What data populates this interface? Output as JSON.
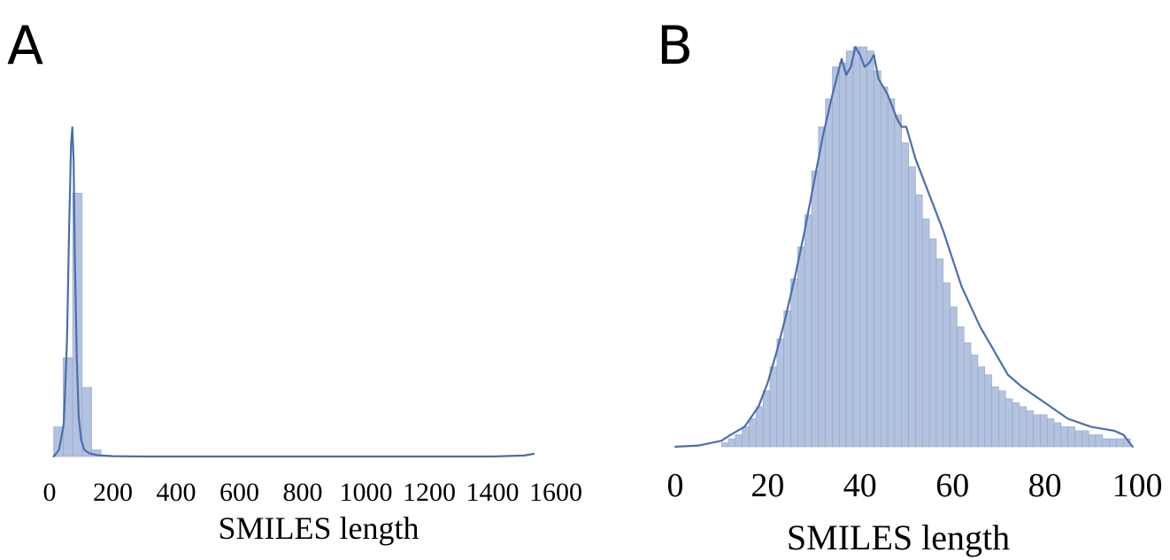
{
  "chart_data": [
    {
      "type": "histogram",
      "panel_label": "A",
      "xlabel": "SMILES length",
      "ylabel": "",
      "xlim": [
        0,
        1600
      ],
      "xticks": [
        "0",
        "200",
        "400",
        "600",
        "800",
        "1000",
        "1200",
        "1400",
        "1600"
      ],
      "y_axis_shown": false,
      "grid": false,
      "bar_color": "#b3c2de",
      "bar_edge_color": "#8fa3cc",
      "line_color": "#4a6fad",
      "bins": [
        {
          "start": 13,
          "end": 43,
          "density": 0.09
        },
        {
          "start": 43,
          "end": 73,
          "density": 0.3
        },
        {
          "start": 73,
          "end": 103,
          "density": 0.8
        },
        {
          "start": 103,
          "end": 133,
          "density": 0.21
        },
        {
          "start": 133,
          "end": 163,
          "density": 0.02
        },
        {
          "start": 163,
          "end": 193,
          "density": 0.004
        }
      ],
      "kde": {
        "x": [
          13,
          30,
          45,
          55,
          62,
          68,
          72,
          76,
          80,
          86,
          92,
          100,
          110,
          125,
          150,
          200,
          300,
          500,
          800,
          1100,
          1400,
          1500,
          1530
        ],
        "y": [
          0.0,
          0.02,
          0.1,
          0.35,
          0.7,
          0.95,
          1.0,
          0.9,
          0.6,
          0.3,
          0.12,
          0.05,
          0.02,
          0.01,
          0.004,
          0.001,
          0.0,
          0.0,
          0.0,
          0.0,
          0.0,
          0.003,
          0.008
        ]
      }
    },
    {
      "type": "histogram",
      "panel_label": "B",
      "xlabel": "SMILES length",
      "ylabel": "",
      "xlim": [
        0,
        100
      ],
      "xticks": [
        "0",
        "20",
        "40",
        "60",
        "80",
        "100"
      ],
      "y_axis_shown": false,
      "grid": false,
      "bar_color": "#b3c2de",
      "bar_edge_color": "#8fa3cc",
      "line_color": "#4a6fad",
      "bin_start": 10,
      "bin_width": 1.5,
      "bin_densities": [
        0.01,
        0.02,
        0.03,
        0.05,
        0.07,
        0.1,
        0.14,
        0.2,
        0.27,
        0.34,
        0.42,
        0.5,
        0.58,
        0.69,
        0.8,
        0.87,
        0.95,
        0.96,
        0.99,
        1.0,
        1.0,
        0.99,
        0.94,
        0.9,
        0.87,
        0.83,
        0.76,
        0.7,
        0.63,
        0.57,
        0.52,
        0.47,
        0.41,
        0.35,
        0.3,
        0.26,
        0.23,
        0.2,
        0.18,
        0.15,
        0.14,
        0.12,
        0.11,
        0.1,
        0.09,
        0.08,
        0.08,
        0.07,
        0.06,
        0.05,
        0.05,
        0.04,
        0.04,
        0.03,
        0.03,
        0.02,
        0.02,
        0.02,
        0.02
      ],
      "kde": {
        "x": [
          0,
          5,
          10,
          12,
          15,
          18,
          20,
          22,
          24,
          26,
          28,
          30,
          32,
          34,
          36,
          37,
          38,
          39,
          40,
          41,
          42,
          43,
          44,
          45,
          46,
          47,
          48,
          49,
          50,
          51,
          52,
          54,
          56,
          58,
          60,
          62,
          64,
          66,
          68,
          70,
          72,
          75,
          80,
          85,
          90,
          95,
          97,
          99
        ],
        "y": [
          0.0,
          0.003,
          0.015,
          0.03,
          0.05,
          0.1,
          0.16,
          0.24,
          0.33,
          0.43,
          0.54,
          0.66,
          0.78,
          0.88,
          0.97,
          0.93,
          0.95,
          1.0,
          0.98,
          0.95,
          0.96,
          0.98,
          0.92,
          0.9,
          0.88,
          0.85,
          0.82,
          0.8,
          0.8,
          0.76,
          0.72,
          0.66,
          0.6,
          0.54,
          0.47,
          0.4,
          0.35,
          0.3,
          0.26,
          0.22,
          0.18,
          0.15,
          0.11,
          0.07,
          0.05,
          0.04,
          0.03,
          0.0
        ]
      }
    }
  ]
}
